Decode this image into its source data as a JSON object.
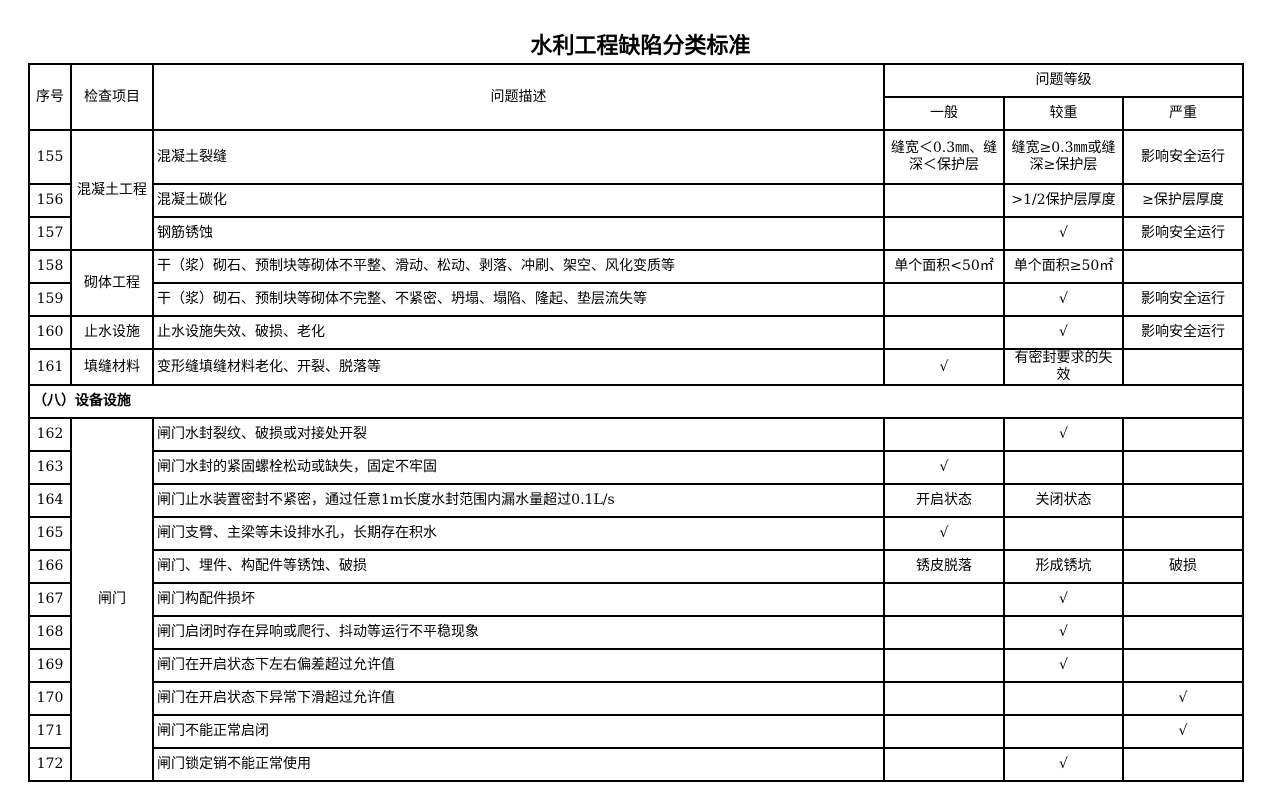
{
  "title": "水利工程缺陷分类标准",
  "headers": {
    "no": "序号",
    "item": "检查项目",
    "desc": "问题描述",
    "level": "问题等级",
    "general": "一般",
    "serious": "较重",
    "severe": "严重"
  },
  "groups": {
    "concrete": "混凝土工程",
    "masonry": "砌体工程",
    "waterstop": "止水设施",
    "filler": "填缝材料",
    "gate": "闸门"
  },
  "section_8": "（八）设备设施",
  "rows": [
    {
      "no": "155",
      "desc": "混凝土裂缝",
      "general": "缝宽＜0.3㎜、缝深＜保护层",
      "serious": "缝宽≥0.3㎜或缝深≥保护层",
      "severe": "影响安全运行"
    },
    {
      "no": "156",
      "desc": "混凝土碳化",
      "general": "",
      "serious": ">1/2保护层厚度",
      "severe": "≥保护层厚度"
    },
    {
      "no": "157",
      "desc": "钢筋锈蚀",
      "general": "",
      "serious": "√",
      "severe": "影响安全运行"
    },
    {
      "no": "158",
      "desc": "干（浆）砌石、预制块等砌体不平整、滑动、松动、剥落、冲刷、架空、风化变质等",
      "general": "单个面积<50㎡",
      "serious": "单个面积≥50㎡",
      "severe": ""
    },
    {
      "no": "159",
      "desc": "干（浆）砌石、预制块等砌体不完整、不紧密、坍塌、塌陷、隆起、垫层流失等",
      "general": "",
      "serious": "√",
      "severe": "影响安全运行"
    },
    {
      "no": "160",
      "desc": "止水设施失效、破损、老化",
      "general": "",
      "serious": "√",
      "severe": "影响安全运行"
    },
    {
      "no": "161",
      "desc": "变形缝填缝材料老化、开裂、脱落等",
      "general": "√",
      "serious": "有密封要求的失效",
      "severe": ""
    },
    {
      "no": "162",
      "desc": "闸门水封裂纹、破损或对接处开裂",
      "general": "",
      "serious": "√",
      "severe": ""
    },
    {
      "no": "163",
      "desc": "闸门水封的紧固螺栓松动或缺失，固定不牢固",
      "general": "√",
      "serious": "",
      "severe": ""
    },
    {
      "no": "164",
      "desc": "闸门止水装置密封不紧密，通过任意1m长度水封范围内漏水量超过0.1L/s",
      "general": "开启状态",
      "serious": "关闭状态",
      "severe": ""
    },
    {
      "no": "165",
      "desc": "闸门支臂、主梁等未设排水孔，长期存在积水",
      "general": "√",
      "serious": "",
      "severe": ""
    },
    {
      "no": "166",
      "desc": "闸门、埋件、构配件等锈蚀、破损",
      "general": "锈皮脱落",
      "serious": "形成锈坑",
      "severe": "破损"
    },
    {
      "no": "167",
      "desc": "闸门构配件损坏",
      "general": "",
      "serious": "√",
      "severe": ""
    },
    {
      "no": "168",
      "desc": "闸门启闭时存在异响或爬行、抖动等运行不平稳现象",
      "general": "",
      "serious": "√",
      "severe": ""
    },
    {
      "no": "169",
      "desc": "闸门在开启状态下左右偏差超过允许值",
      "general": "",
      "serious": "√",
      "severe": ""
    },
    {
      "no": "170",
      "desc": "闸门在开启状态下异常下滑超过允许值",
      "general": "",
      "serious": "",
      "severe": "√"
    },
    {
      "no": "171",
      "desc": "闸门不能正常启闭",
      "general": "",
      "serious": "",
      "severe": "√"
    },
    {
      "no": "172",
      "desc": "闸门锁定销不能正常使用",
      "general": "",
      "serious": "√",
      "severe": ""
    }
  ]
}
